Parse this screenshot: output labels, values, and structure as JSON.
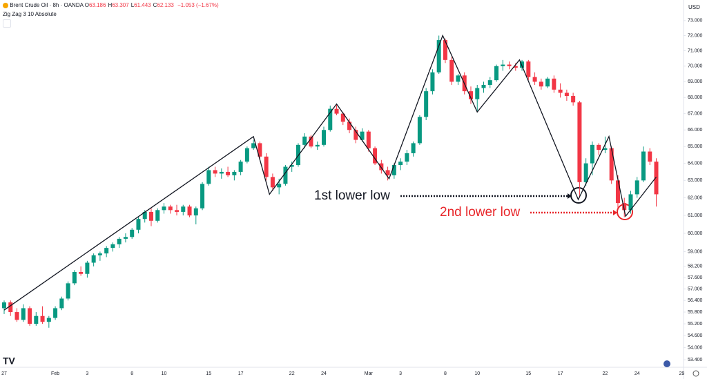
{
  "chart_data": {
    "type": "candlestick",
    "header": {
      "symbol": "Brent Crude Oil · 8h · OANDA",
      "ohlc": [
        {
          "label": "O",
          "value": "63.186"
        },
        {
          "label": "H",
          "value": "63.307"
        },
        {
          "label": "L",
          "value": "61.443"
        },
        {
          "label": "C",
          "value": "62.133"
        }
      ],
      "change": "−1.053 (−1.67%)",
      "currency": "USD"
    },
    "up_color": "#089981",
    "down_color": "#f23645",
    "log_scale": true,
    "grid": false,
    "ylim": [
      53.1,
      74.4
    ],
    "yticks": [
      {
        "value": 73,
        "label": "73.000"
      },
      {
        "value": 72,
        "label": "72.000"
      },
      {
        "value": 71,
        "label": "71.000"
      },
      {
        "value": 70,
        "label": "70.000"
      },
      {
        "value": 69,
        "label": "69.000"
      },
      {
        "value": 68,
        "label": "68.000"
      },
      {
        "value": 67,
        "label": "67.000"
      },
      {
        "value": 66,
        "label": "66.000"
      },
      {
        "value": 65,
        "label": "65.000"
      },
      {
        "value": 64,
        "label": "64.000"
      },
      {
        "value": 63,
        "label": "63.000"
      },
      {
        "value": 62,
        "label": "62.000"
      },
      {
        "value": 61,
        "label": "61.000"
      },
      {
        "value": 60,
        "label": "60.000"
      },
      {
        "value": 59,
        "label": "59.000"
      },
      {
        "value": 58.2,
        "label": "58.200"
      },
      {
        "value": 57.6,
        "label": "57.600"
      },
      {
        "value": 57,
        "label": "57.000"
      },
      {
        "value": 56.4,
        "label": "56.400"
      },
      {
        "value": 55.8,
        "label": "55.800"
      },
      {
        "value": 55.2,
        "label": "55.200"
      },
      {
        "value": 54.6,
        "label": "54.600"
      },
      {
        "value": 54,
        "label": "54.000"
      },
      {
        "value": 53.4,
        "label": "53.400"
      }
    ],
    "categories": [
      "27",
      null,
      null,
      null,
      null,
      null,
      null,
      null,
      "Feb",
      null,
      null,
      null,
      null,
      "3",
      null,
      null,
      null,
      null,
      null,
      null,
      "8",
      null,
      null,
      null,
      null,
      "10",
      null,
      null,
      null,
      null,
      null,
      null,
      "15",
      null,
      null,
      null,
      null,
      "17",
      null,
      null,
      null,
      null,
      null,
      null,
      null,
      "22",
      null,
      null,
      null,
      null,
      "24",
      null,
      null,
      null,
      null,
      null,
      null,
      "Mar",
      null,
      null,
      null,
      null,
      "3",
      null,
      null,
      null,
      null,
      null,
      null,
      "8",
      null,
      null,
      null,
      null,
      "10",
      null,
      null,
      null,
      null,
      null,
      null,
      null,
      "15",
      null,
      null,
      null,
      null,
      "17",
      null,
      null,
      null,
      null,
      null,
      null,
      "22",
      null,
      null,
      null,
      null,
      "24",
      null,
      null,
      null,
      null,
      null,
      null,
      "29",
      null
    ],
    "candles": [
      [
        56.0,
        56.4,
        55.7,
        56.3
      ],
      [
        56.3,
        56.4,
        55.6,
        55.8
      ],
      [
        55.8,
        56.0,
        55.3,
        55.4
      ],
      [
        55.4,
        56.2,
        55.3,
        56.0
      ],
      [
        56.0,
        56.1,
        55.1,
        55.2
      ],
      [
        55.2,
        55.8,
        55.1,
        55.6
      ],
      [
        55.6,
        56.1,
        55.2,
        55.3
      ],
      [
        55.3,
        55.6,
        55.0,
        55.5
      ],
      [
        55.5,
        56.1,
        55.4,
        56.0
      ],
      [
        56.0,
        56.6,
        55.9,
        56.5
      ],
      [
        56.5,
        57.4,
        56.4,
        57.3
      ],
      [
        57.3,
        58.0,
        57.2,
        57.9
      ],
      [
        57.9,
        58.2,
        57.7,
        57.8
      ],
      [
        57.8,
        58.5,
        57.6,
        58.4
      ],
      [
        58.4,
        58.9,
        58.2,
        58.8
      ],
      [
        58.8,
        59.0,
        58.5,
        58.9
      ],
      [
        58.9,
        59.3,
        58.7,
        59.2
      ],
      [
        59.2,
        59.5,
        59.0,
        59.4
      ],
      [
        59.4,
        59.8,
        59.2,
        59.7
      ],
      [
        59.7,
        60.0,
        59.5,
        59.8
      ],
      [
        59.8,
        60.3,
        59.7,
        60.2
      ],
      [
        60.2,
        60.9,
        60.0,
        60.8
      ],
      [
        60.8,
        61.3,
        60.6,
        61.2
      ],
      [
        61.2,
        61.4,
        60.4,
        60.7
      ],
      [
        60.7,
        61.4,
        60.6,
        61.3
      ],
      [
        61.3,
        61.7,
        61.1,
        61.5
      ],
      [
        61.5,
        61.6,
        61.1,
        61.3
      ],
      [
        61.3,
        61.6,
        61.0,
        61.2
      ],
      [
        61.2,
        61.6,
        61.0,
        61.5
      ],
      [
        61.5,
        61.6,
        60.9,
        61.0
      ],
      [
        61.0,
        61.5,
        60.5,
        61.4
      ],
      [
        61.4,
        62.9,
        61.3,
        62.8
      ],
      [
        62.8,
        63.8,
        62.7,
        63.6
      ],
      [
        63.6,
        63.8,
        63.2,
        63.4
      ],
      [
        63.4,
        63.7,
        63.1,
        63.5
      ],
      [
        63.5,
        63.8,
        63.2,
        63.3
      ],
      [
        63.3,
        63.6,
        63.0,
        63.5
      ],
      [
        63.5,
        64.2,
        63.3,
        64.1
      ],
      [
        64.1,
        65.0,
        64.0,
        64.9
      ],
      [
        64.9,
        65.4,
        64.8,
        65.2
      ],
      [
        65.2,
        65.3,
        64.2,
        64.4
      ],
      [
        64.4,
        64.6,
        63.0,
        63.2
      ],
      [
        63.2,
        63.4,
        62.4,
        62.6
      ],
      [
        62.6,
        63.1,
        62.2,
        62.8
      ],
      [
        62.8,
        63.9,
        62.7,
        63.8
      ],
      [
        63.8,
        64.1,
        63.5,
        63.9
      ],
      [
        63.9,
        65.2,
        63.8,
        65.1
      ],
      [
        65.1,
        65.8,
        64.9,
        65.6
      ],
      [
        65.6,
        65.7,
        64.9,
        65.0
      ],
      [
        65.0,
        65.3,
        64.8,
        65.1
      ],
      [
        65.1,
        66.2,
        65.0,
        66.0
      ],
      [
        66.0,
        67.5,
        65.9,
        67.3
      ],
      [
        67.3,
        67.6,
        66.9,
        67.0
      ],
      [
        67.0,
        67.1,
        66.3,
        66.5
      ],
      [
        66.5,
        66.7,
        65.8,
        66.0
      ],
      [
        66.0,
        66.2,
        65.2,
        65.4
      ],
      [
        65.4,
        66.1,
        65.3,
        65.9
      ],
      [
        65.9,
        66.0,
        64.7,
        64.9
      ],
      [
        64.9,
        65.0,
        63.9,
        64.0
      ],
      [
        64.0,
        64.2,
        63.4,
        63.6
      ],
      [
        63.6,
        63.8,
        63.0,
        63.3
      ],
      [
        63.3,
        64.0,
        63.1,
        63.9
      ],
      [
        63.9,
        64.3,
        63.6,
        64.1
      ],
      [
        64.1,
        64.8,
        63.9,
        64.6
      ],
      [
        64.6,
        65.3,
        64.4,
        65.2
      ],
      [
        65.2,
        66.9,
        65.1,
        66.8
      ],
      [
        66.8,
        68.6,
        66.6,
        68.4
      ],
      [
        68.4,
        69.8,
        68.2,
        69.6
      ],
      [
        69.6,
        72.0,
        69.5,
        71.7
      ],
      [
        71.7,
        71.8,
        70.2,
        70.4
      ],
      [
        70.4,
        70.6,
        68.8,
        69.0
      ],
      [
        69.0,
        69.5,
        68.8,
        69.4
      ],
      [
        69.4,
        69.6,
        68.2,
        68.4
      ],
      [
        68.4,
        68.7,
        67.6,
        67.9
      ],
      [
        67.9,
        68.8,
        67.1,
        68.6
      ],
      [
        68.6,
        69.0,
        68.3,
        68.8
      ],
      [
        68.8,
        69.3,
        68.6,
        69.1
      ],
      [
        69.1,
        70.1,
        69.0,
        70.0
      ],
      [
        70.0,
        70.4,
        69.7,
        70.1
      ],
      [
        70.1,
        70.3,
        69.8,
        70.0
      ],
      [
        70.0,
        70.2,
        69.7,
        69.9
      ],
      [
        69.9,
        70.4,
        69.7,
        70.3
      ],
      [
        70.3,
        70.4,
        69.1,
        69.3
      ],
      [
        69.3,
        69.6,
        68.8,
        69.0
      ],
      [
        69.0,
        69.2,
        68.5,
        68.7
      ],
      [
        68.7,
        69.3,
        68.6,
        69.2
      ],
      [
        69.2,
        69.4,
        68.3,
        68.5
      ],
      [
        68.5,
        68.9,
        68.0,
        68.3
      ],
      [
        68.3,
        68.5,
        67.8,
        68.1
      ],
      [
        68.1,
        68.3,
        67.5,
        67.7
      ],
      [
        67.7,
        67.8,
        62.0,
        62.9
      ],
      [
        62.9,
        64.3,
        62.7,
        64.0
      ],
      [
        64.0,
        65.3,
        63.3,
        65.1
      ],
      [
        65.1,
        65.2,
        64.5,
        64.8
      ],
      [
        64.8,
        65.6,
        64.6,
        64.9
      ],
      [
        64.9,
        65.0,
        62.8,
        63.0
      ],
      [
        63.0,
        63.3,
        61.4,
        61.7
      ],
      [
        61.7,
        62.0,
        60.9,
        61.3
      ],
      [
        61.3,
        62.4,
        61.1,
        62.2
      ],
      [
        62.2,
        63.2,
        62.0,
        63.0
      ],
      [
        63.0,
        65.0,
        62.9,
        64.7
      ],
      [
        64.7,
        64.9,
        63.9,
        64.1
      ],
      [
        64.1,
        64.3,
        61.5,
        62.2
      ],
      null,
      null,
      null,
      null,
      null
    ],
    "zigzag": {
      "name": "Zig Zag 3 10 Absolute",
      "color": "#131722",
      "x": [
        0,
        39,
        41.5,
        52,
        60.2,
        68.6,
        74,
        80.6,
        89.8,
        94.6,
        97.2,
        102
      ],
      "values": [
        55.9,
        65.6,
        62.2,
        67.6,
        63.1,
        72.0,
        67.1,
        70.4,
        61.9,
        65.6,
        60.95,
        63.2
      ]
    },
    "annotations": [
      {
        "text": "1st lower low",
        "color": "#131722"
      },
      {
        "text": "2nd lower low",
        "color": "#e8262a"
      }
    ]
  }
}
